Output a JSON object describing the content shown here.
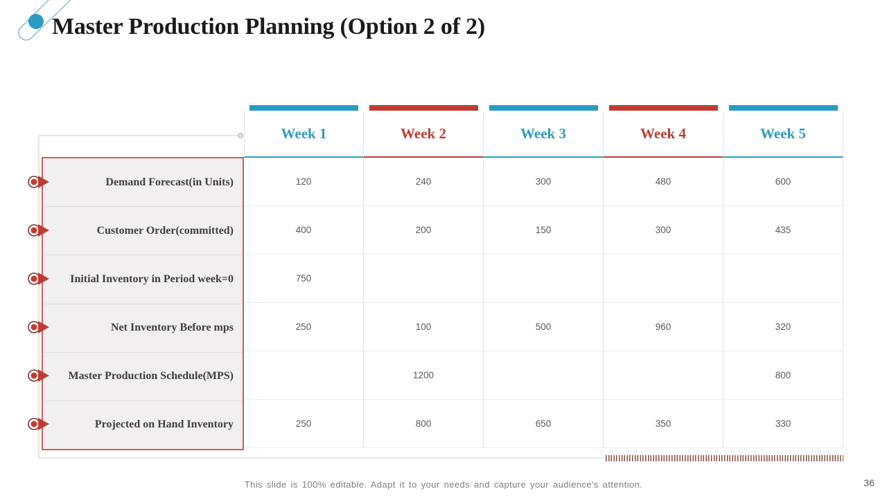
{
  "slide": {
    "title": "Master Production Planning (Option 2 of 2)",
    "footer": "This slide is 100% editable. Adapt it to your needs and capture your audience's attention.",
    "page_number": "36"
  },
  "colors": {
    "blue": "#2d9ac5",
    "red": "#be3b33",
    "label_text": "#3f3f3f",
    "value_text": "#595959",
    "label_bg": "#f1efef",
    "label_border": "#c8625b",
    "grid_line": "#e2e2e2",
    "bracket": "#cbcbcb",
    "tick": "#8e4a44",
    "footer_text": "#7f7f7f",
    "bullet_red": "#c23b32",
    "bullet_ring": "#73312a",
    "decoration_dot": "#2e9ac6",
    "decoration_line": "#86bfd9"
  },
  "table": {
    "columns": [
      {
        "label": "Week 1",
        "color_key": "blue"
      },
      {
        "label": "Week 2",
        "color_key": "red"
      },
      {
        "label": "Week 3",
        "color_key": "blue"
      },
      {
        "label": "Week 4",
        "color_key": "red"
      },
      {
        "label": "Week 5",
        "color_key": "blue"
      }
    ],
    "rows": [
      {
        "label": "Demand Forecast(in Units)",
        "values": [
          "120",
          "240",
          "300",
          "480",
          "600"
        ]
      },
      {
        "label": "Customer Order(committed)",
        "values": [
          "400",
          "200",
          "150",
          "300",
          "435"
        ]
      },
      {
        "label": "Initial Inventory in Period week=0",
        "values": [
          "750",
          "",
          "",
          "",
          ""
        ]
      },
      {
        "label": "Net Inventory Before mps",
        "values": [
          "250",
          "100",
          "500",
          "960",
          "320"
        ]
      },
      {
        "label": "Master Production Schedule(MPS)",
        "values": [
          "",
          "1200",
          "",
          "",
          "800"
        ]
      },
      {
        "label": "Projected on Hand Inventory",
        "values": [
          "250",
          "800",
          "650",
          "350",
          "330"
        ]
      }
    ]
  }
}
